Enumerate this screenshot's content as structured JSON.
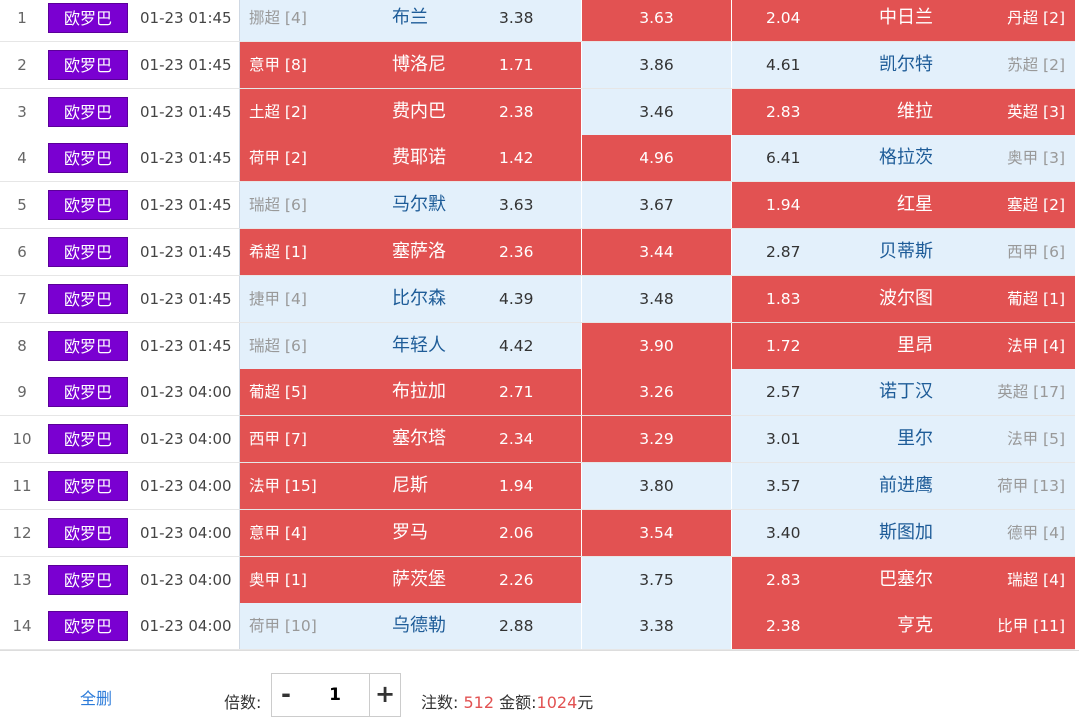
{
  "colors": {
    "selected": "#e25252",
    "unselected": "#e3f0fb",
    "league_badge": "#7a00d1",
    "link": "#2a7ad9"
  },
  "matches": [
    {
      "num": "1",
      "league": "欧罗巴",
      "time": "01-23 01:45",
      "home_rank": "挪超 [4]",
      "home": "布兰",
      "home_odds": "3.38",
      "draw_odds": "3.63",
      "away_odds": "2.04",
      "away": "中日兰",
      "away_rank": "丹超 [2]",
      "sel": [
        "unsel",
        "sel",
        "sel"
      ]
    },
    {
      "num": "2",
      "league": "欧罗巴",
      "time": "01-23 01:45",
      "home_rank": "意甲 [8]",
      "home": "博洛尼",
      "home_odds": "1.71",
      "draw_odds": "3.86",
      "away_odds": "4.61",
      "away": "凯尔特",
      "away_rank": "苏超 [2]",
      "sel": [
        "sel",
        "unsel",
        "unsel"
      ]
    },
    {
      "num": "3",
      "league": "欧罗巴",
      "time": "01-23 01:45",
      "home_rank": "土超 [2]",
      "home": "费内巴",
      "home_odds": "2.38",
      "draw_odds": "3.46",
      "away_odds": "2.83",
      "away": "维拉",
      "away_rank": "英超 [3]",
      "sel": [
        "sel",
        "unsel",
        "sel"
      ]
    },
    {
      "num": "4",
      "league": "欧罗巴",
      "time": "01-23 01:45",
      "home_rank": "荷甲 [2]",
      "home": "费耶诺",
      "home_odds": "1.42",
      "draw_odds": "4.96",
      "away_odds": "6.41",
      "away": "格拉茨",
      "away_rank": "奥甲 [3]",
      "sel": [
        "sel",
        "sel",
        "unsel"
      ]
    },
    {
      "num": "5",
      "league": "欧罗巴",
      "time": "01-23 01:45",
      "home_rank": "瑞超 [6]",
      "home": "马尔默",
      "home_odds": "3.63",
      "draw_odds": "3.67",
      "away_odds": "1.94",
      "away": "红星",
      "away_rank": "塞超 [2]",
      "sel": [
        "unsel",
        "unsel",
        "sel"
      ]
    },
    {
      "num": "6",
      "league": "欧罗巴",
      "time": "01-23 01:45",
      "home_rank": "希超 [1]",
      "home": "塞萨洛",
      "home_odds": "2.36",
      "draw_odds": "3.44",
      "away_odds": "2.87",
      "away": "贝蒂斯",
      "away_rank": "西甲 [6]",
      "sel": [
        "sel",
        "sel",
        "unsel"
      ]
    },
    {
      "num": "7",
      "league": "欧罗巴",
      "time": "01-23 01:45",
      "home_rank": "捷甲 [4]",
      "home": "比尔森",
      "home_odds": "4.39",
      "draw_odds": "3.48",
      "away_odds": "1.83",
      "away": "波尔图",
      "away_rank": "葡超 [1]",
      "sel": [
        "unsel",
        "unsel",
        "sel"
      ]
    },
    {
      "num": "8",
      "league": "欧罗巴",
      "time": "01-23 01:45",
      "home_rank": "瑞超 [6]",
      "home": "年轻人",
      "home_odds": "4.42",
      "draw_odds": "3.90",
      "away_odds": "1.72",
      "away": "里昂",
      "away_rank": "法甲 [4]",
      "sel": [
        "unsel",
        "sel",
        "sel"
      ]
    },
    {
      "num": "9",
      "league": "欧罗巴",
      "time": "01-23 04:00",
      "home_rank": "葡超 [5]",
      "home": "布拉加",
      "home_odds": "2.71",
      "draw_odds": "3.26",
      "away_odds": "2.57",
      "away": "诺丁汉",
      "away_rank": "英超 [17]",
      "sel": [
        "sel",
        "sel",
        "unsel"
      ]
    },
    {
      "num": "10",
      "league": "欧罗巴",
      "time": "01-23 04:00",
      "home_rank": "西甲 [7]",
      "home": "塞尔塔",
      "home_odds": "2.34",
      "draw_odds": "3.29",
      "away_odds": "3.01",
      "away": "里尔",
      "away_rank": "法甲 [5]",
      "sel": [
        "sel",
        "sel",
        "unsel"
      ]
    },
    {
      "num": "11",
      "league": "欧罗巴",
      "time": "01-23 04:00",
      "home_rank": "法甲 [15]",
      "home": "尼斯",
      "home_odds": "1.94",
      "draw_odds": "3.80",
      "away_odds": "3.57",
      "away": "前进鹰",
      "away_rank": "荷甲 [13]",
      "sel": [
        "sel",
        "unsel",
        "unsel"
      ]
    },
    {
      "num": "12",
      "league": "欧罗巴",
      "time": "01-23 04:00",
      "home_rank": "意甲 [4]",
      "home": "罗马",
      "home_odds": "2.06",
      "draw_odds": "3.54",
      "away_odds": "3.40",
      "away": "斯图加",
      "away_rank": "德甲 [4]",
      "sel": [
        "sel",
        "sel",
        "unsel"
      ]
    },
    {
      "num": "13",
      "league": "欧罗巴",
      "time": "01-23 04:00",
      "home_rank": "奥甲 [1]",
      "home": "萨茨堡",
      "home_odds": "2.26",
      "draw_odds": "3.75",
      "away_odds": "2.83",
      "away": "巴塞尔",
      "away_rank": "瑞超 [4]",
      "sel": [
        "sel",
        "unsel",
        "sel"
      ]
    },
    {
      "num": "14",
      "league": "欧罗巴",
      "time": "01-23 04:00",
      "home_rank": "荷甲 [10]",
      "home": "乌德勒",
      "home_odds": "2.88",
      "draw_odds": "3.38",
      "away_odds": "2.38",
      "away": "亨克",
      "away_rank": "比甲 [11]",
      "sel": [
        "unsel",
        "unsel",
        "sel"
      ]
    }
  ],
  "footer": {
    "clear_all": "全删",
    "multiplier_label": "倍数:",
    "minus": "-",
    "multiplier_value": "1",
    "plus": "+",
    "bets_label": "注数:",
    "bets_value": "512",
    "amount_label": "金额:",
    "amount_value": "1024",
    "amount_unit": "元"
  }
}
